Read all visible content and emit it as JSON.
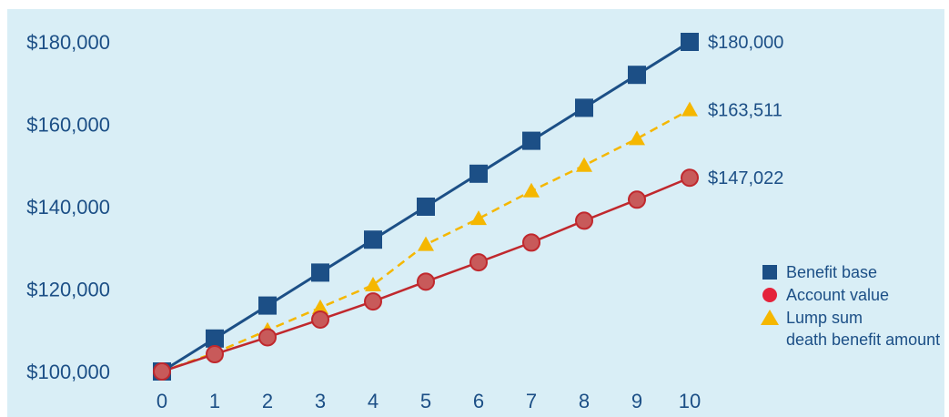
{
  "chart_data": {
    "type": "line",
    "x": [
      0,
      1,
      2,
      3,
      4,
      5,
      6,
      7,
      8,
      9,
      10
    ],
    "ylim": [
      100000,
      180000
    ],
    "yticks": [
      100000,
      120000,
      140000,
      160000,
      180000
    ],
    "ytick_labels": [
      "$100,000",
      "$120,000",
      "$140,000",
      "$160,000",
      "$180,000"
    ],
    "xtick_labels": [
      "0",
      "1",
      "2",
      "3",
      "4",
      "5",
      "6",
      "7",
      "8",
      "9",
      "10"
    ],
    "grid": false,
    "legend_position": "right",
    "series": [
      {
        "name": "Benefit base",
        "marker": "square",
        "line_style": "solid",
        "color": "#1c4f86",
        "values": [
          100000,
          108000,
          116000,
          124000,
          132000,
          140000,
          148000,
          156000,
          164000,
          172000,
          180000
        ],
        "end_label": "$180,000"
      },
      {
        "name": "Account value",
        "marker": "circle",
        "line_style": "solid",
        "color": "#c0282d",
        "marker_fill": "#c85a5a",
        "values": [
          100000,
          104200,
          108300,
          112600,
          117000,
          121800,
          126500,
          131300,
          136600,
          141700,
          147022
        ],
        "end_label": "$147,022"
      },
      {
        "name": "Lump sum death benefit amount",
        "marker": "triangle",
        "line_style": "dashed",
        "color": "#f5b700",
        "values": [
          100000,
          104500,
          110000,
          115500,
          121000,
          130800,
          137100,
          143800,
          150000,
          156500,
          163511
        ],
        "end_label": "$163,511"
      }
    ],
    "legend": [
      {
        "label": "Benefit base",
        "marker": "square",
        "color": "#1c4f86"
      },
      {
        "label": "Account value",
        "marker": "circle",
        "color": "#e4233b"
      },
      {
        "label_line1": "Lump sum",
        "label_line2": "death benefit amount",
        "marker": "triangle",
        "color": "#f5b700"
      }
    ],
    "background_color": "#d9eef6",
    "text_color": "#1c4f86"
  }
}
